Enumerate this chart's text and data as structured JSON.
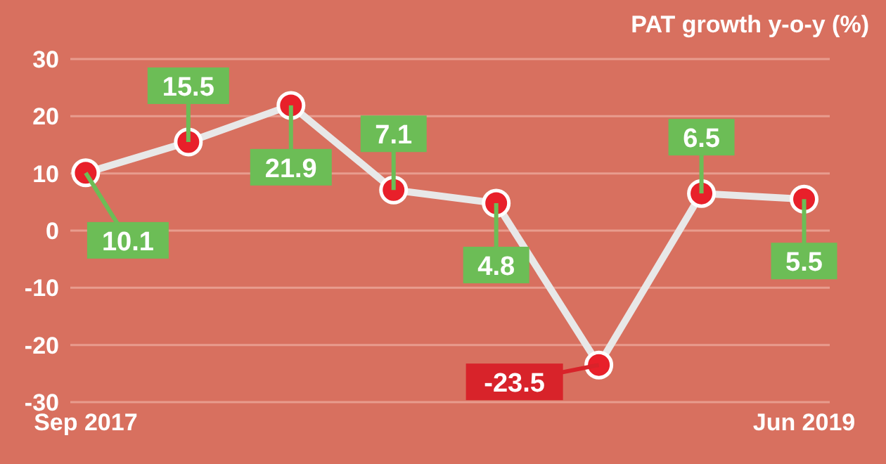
{
  "chart_data": {
    "type": "line",
    "title": "PAT growth y-o-y (%)",
    "categories": [
      "Sep 2017",
      null,
      null,
      null,
      null,
      null,
      null,
      "Jun 2019"
    ],
    "series": [
      {
        "color": "#e8e8e8",
        "values": [
          10.1,
          15.5,
          21.9,
          7.1,
          4.8,
          -23.5,
          6.5,
          5.5
        ]
      }
    ],
    "ylim": [
      -30,
      30
    ],
    "yticks": [
      -30,
      -20,
      -10,
      0,
      10,
      20,
      30
    ],
    "grid": "y",
    "marker": "circle",
    "line_style": "solid",
    "data_labels": true
  }
}
